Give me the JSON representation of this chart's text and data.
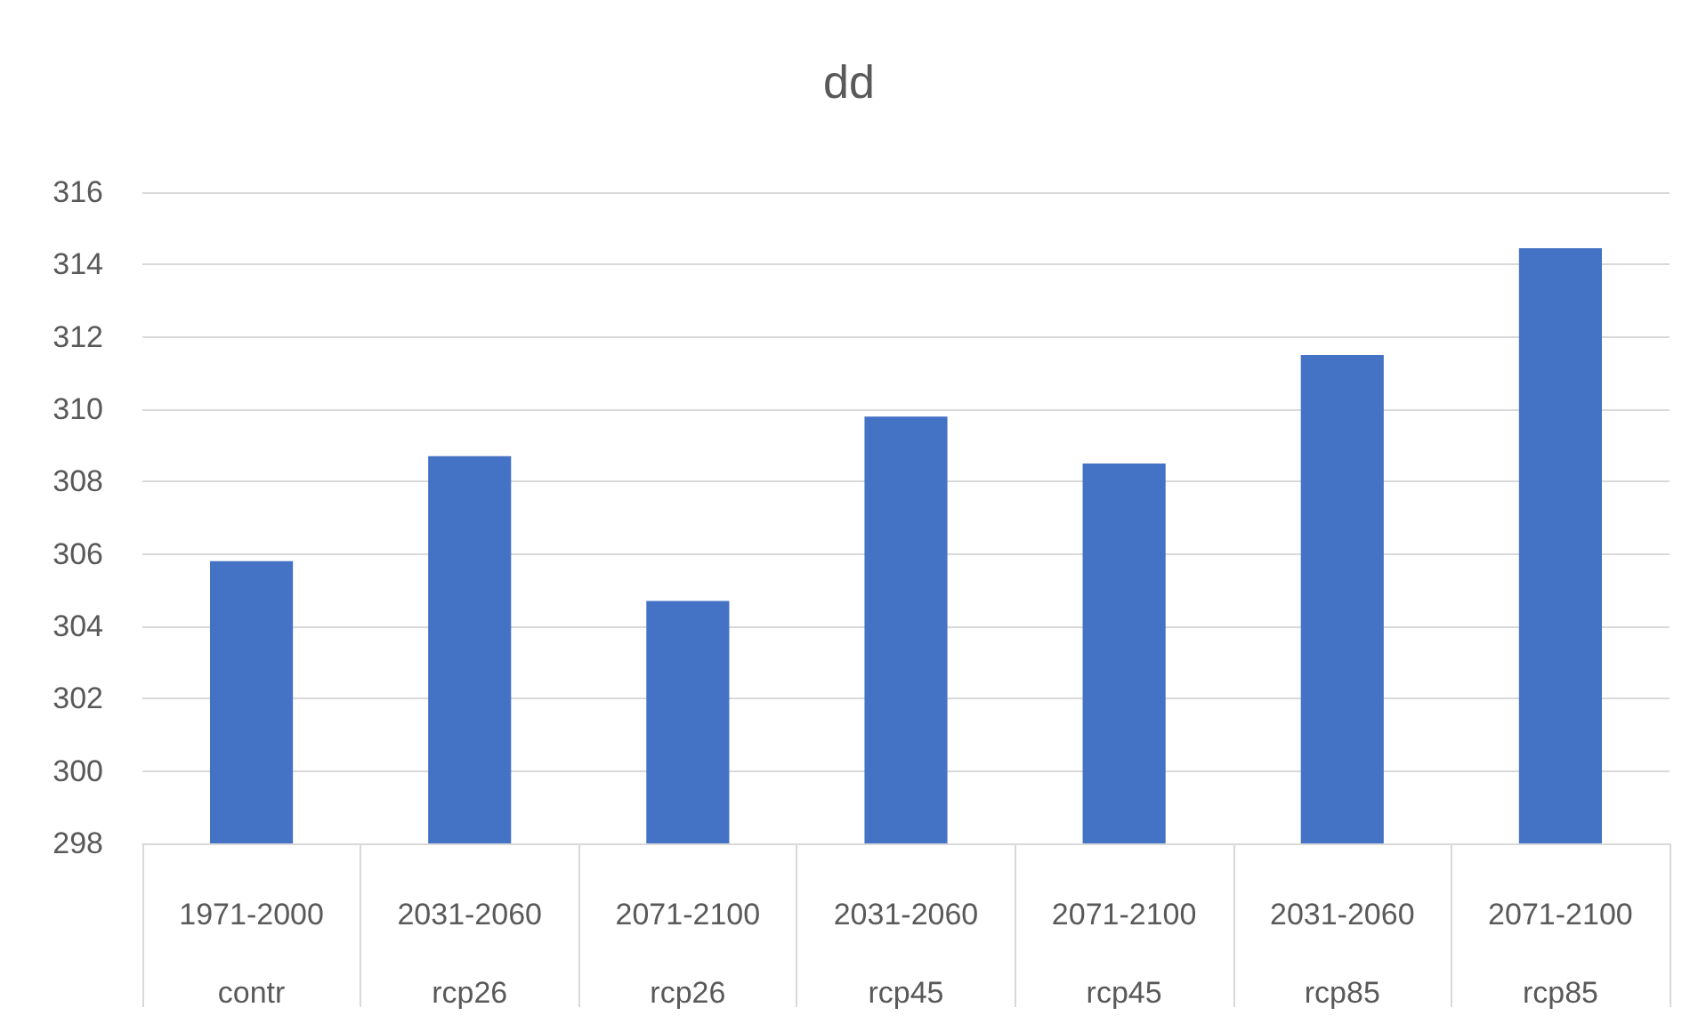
{
  "chart_data": {
    "type": "bar",
    "title": "dd",
    "categories": [
      "1971-2000\ncontr",
      "2031-2060\nrcp26",
      "2071-2100\nrcp26",
      "2031-2060\nrcp45",
      "2071-2100\nrcp45",
      "2031-2060\nrcp85",
      "2071-2100\nrcp85"
    ],
    "values": [
      305.8,
      308.7,
      304.7,
      309.8,
      308.5,
      311.5,
      314.45
    ],
    "color": "#4472c4",
    "ylim": [
      298,
      316
    ],
    "yticks": [
      298,
      300,
      302,
      304,
      306,
      308,
      310,
      312,
      314,
      316
    ],
    "grid": "y"
  }
}
